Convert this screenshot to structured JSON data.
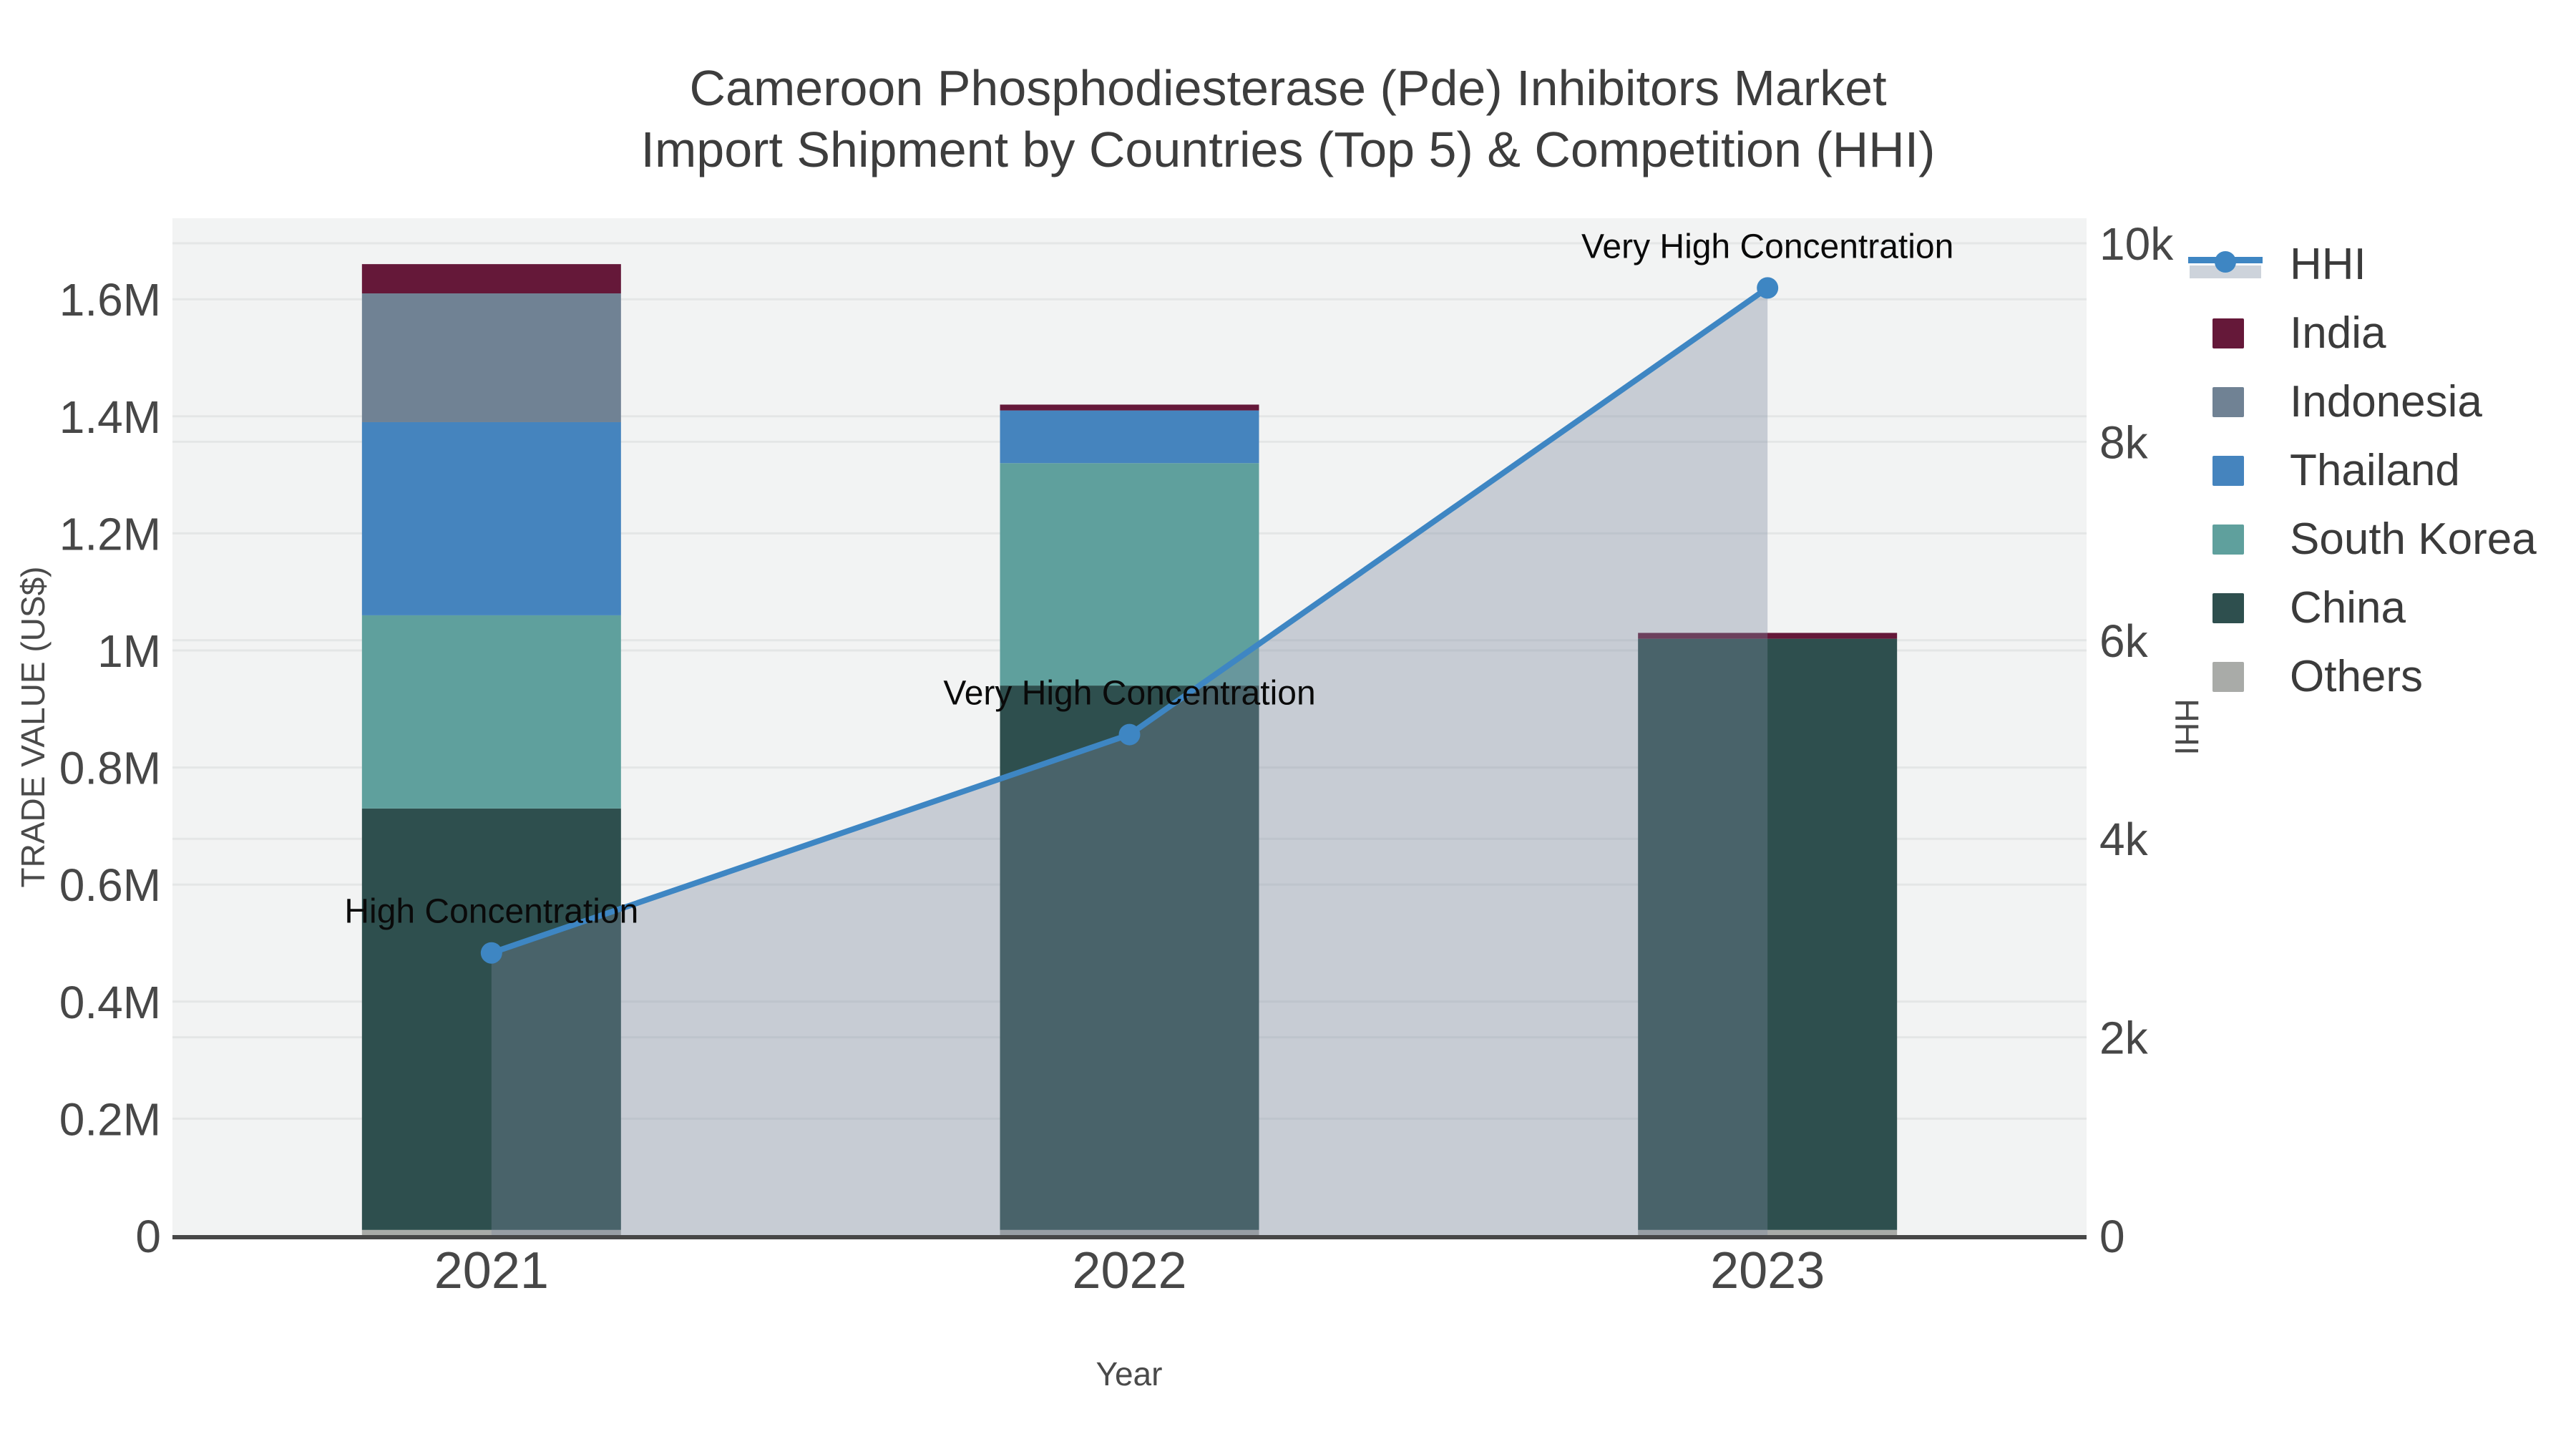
{
  "title": {
    "line1": "Cameroon Phosphodiesterase (Pde) Inhibitors Market",
    "line2": "Import Shipment by Countries (Top 5) & Competition (HHI)"
  },
  "axes": {
    "x": {
      "title": "Year",
      "categories": [
        "2021",
        "2022",
        "2023"
      ]
    },
    "y_left": {
      "title": "TRADE VALUE (US$)",
      "unit": "M US$",
      "range": [
        0,
        1.74
      ],
      "ticks": [
        {
          "label": "0",
          "value": 0
        },
        {
          "label": "0.2M",
          "value": 0.2
        },
        {
          "label": "0.4M",
          "value": 0.4
        },
        {
          "label": "0.6M",
          "value": 0.6
        },
        {
          "label": "0.8M",
          "value": 0.8
        },
        {
          "label": "1M",
          "value": 1.0
        },
        {
          "label": "1.2M",
          "value": 1.2
        },
        {
          "label": "1.4M",
          "value": 1.4
        },
        {
          "label": "1.6M",
          "value": 1.6
        }
      ]
    },
    "y_right": {
      "title": "HHI",
      "range": [
        0,
        10250
      ],
      "ticks": [
        {
          "label": "0",
          "value": 0
        },
        {
          "label": "2k",
          "value": 2000
        },
        {
          "label": "4k",
          "value": 4000
        },
        {
          "label": "6k",
          "value": 6000
        },
        {
          "label": "8k",
          "value": 8000
        },
        {
          "label": "10k",
          "value": 10000
        }
      ]
    }
  },
  "legend": {
    "position": "right",
    "items": [
      {
        "label": "HHI",
        "type": "line+area",
        "color": "#3E86C3"
      },
      {
        "label": "India",
        "type": "bar",
        "color": "#651839"
      },
      {
        "label": "Indonesia",
        "type": "bar",
        "color": "#708294"
      },
      {
        "label": "Thailand",
        "type": "bar",
        "color": "#4584BE"
      },
      {
        "label": "South Korea",
        "type": "bar",
        "color": "#5FA09D"
      },
      {
        "label": "China",
        "type": "bar",
        "color": "#2E4F4E"
      },
      {
        "label": "Others",
        "type": "bar",
        "color": "#A9ABA8"
      }
    ]
  },
  "chart_data": {
    "type": "bar+line",
    "subtype": "stacked-bar with secondary-axis line+area",
    "categories": [
      "2021",
      "2022",
      "2023"
    ],
    "bar_unit": "M US$ (trade value)",
    "bar_series_bottom_to_top": [
      {
        "name": "Others",
        "color": "#A9ABA8",
        "values": [
          0.01,
          0.01,
          0.01
        ]
      },
      {
        "name": "China",
        "color": "#2E4F4E",
        "values": [
          0.72,
          0.93,
          1.01
        ]
      },
      {
        "name": "South Korea",
        "color": "#5FA09D",
        "values": [
          0.33,
          0.38,
          0
        ]
      },
      {
        "name": "Thailand",
        "color": "#4584BE",
        "values": [
          0.33,
          0.09,
          0
        ]
      },
      {
        "name": "Indonesia",
        "color": "#708294",
        "values": [
          0.22,
          0,
          0
        ]
      },
      {
        "name": "India",
        "color": "#651839",
        "values": [
          0.05,
          0.01,
          0.01
        ]
      }
    ],
    "bar_totals": [
      1.66,
      1.42,
      1.03
    ],
    "line_series": {
      "name": "HHI",
      "axis": "right",
      "color": "#3E86C3",
      "area_fill": "rgba(122,136,159,0.36)",
      "values": [
        2850,
        5050,
        9550
      ]
    },
    "annotations": [
      {
        "category": "2021",
        "text": "High Concentration"
      },
      {
        "category": "2022",
        "text": "Very High Concentration"
      },
      {
        "category": "2023",
        "text": "Very High Concentration"
      }
    ],
    "plot_background": "#F2F3F3",
    "gridline_color": "#E4E6E6",
    "grid": true,
    "legend_position": "right"
  }
}
